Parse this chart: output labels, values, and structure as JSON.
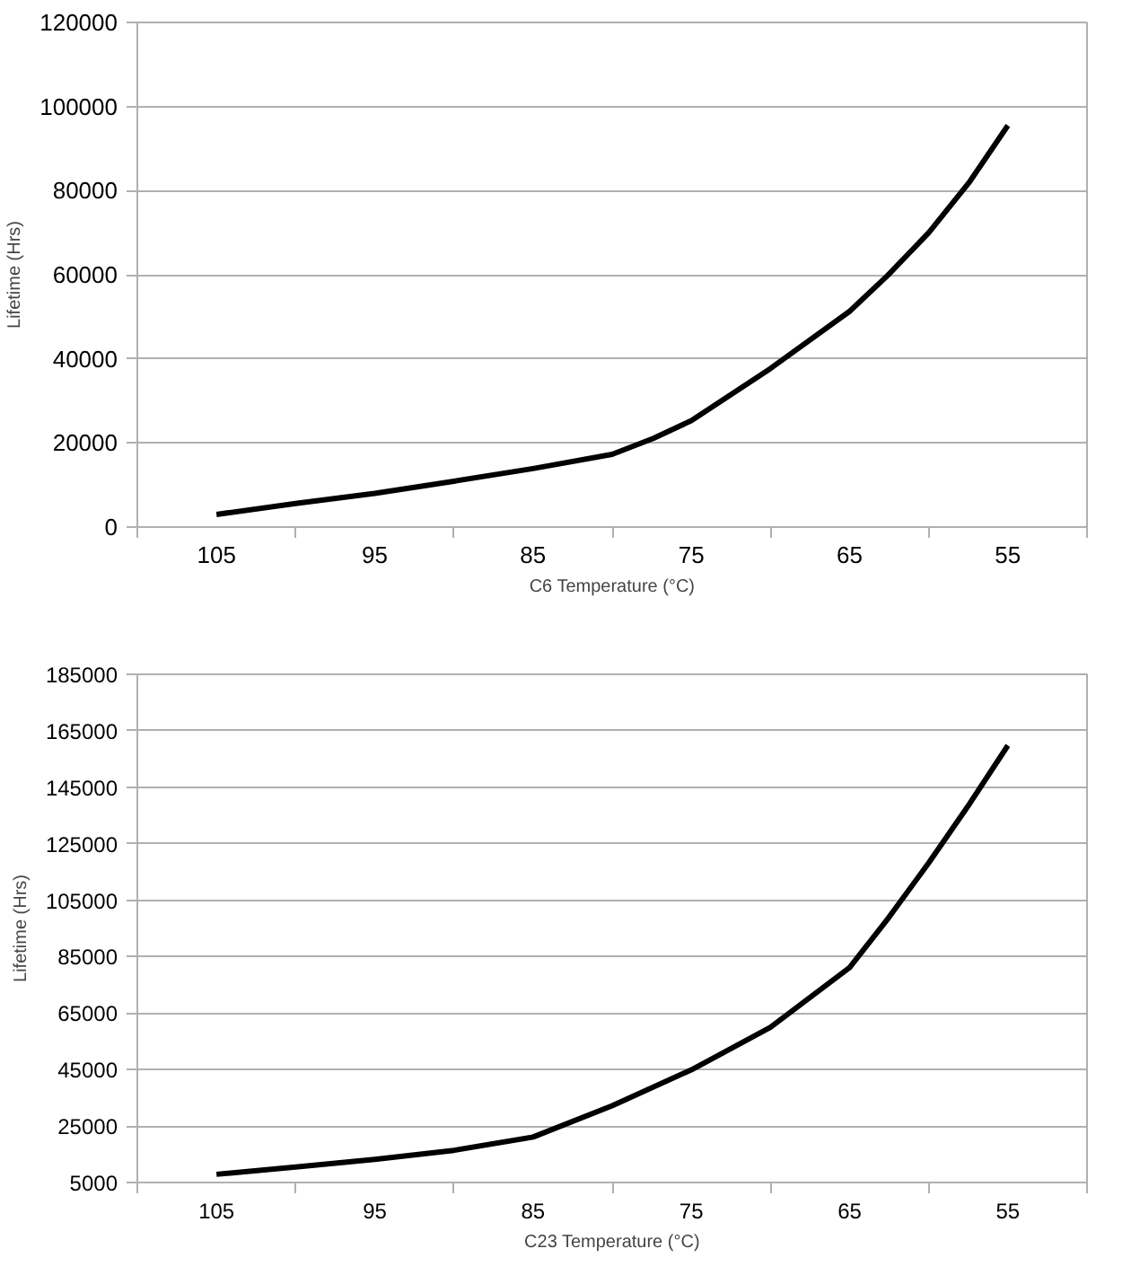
{
  "chart_data": [
    {
      "type": "line",
      "xlabel": "C6 Temperature (°C)",
      "ylabel": "Lifetime (Hrs)",
      "xlim": [
        110,
        50
      ],
      "xticks": [
        105,
        95,
        85,
        75,
        65,
        55
      ],
      "ylim": [
        0,
        120000
      ],
      "yticks": [
        0,
        20000,
        40000,
        60000,
        80000,
        100000,
        120000
      ],
      "grid": "y",
      "line_style": "solid",
      "marker": "none",
      "series": [
        {
          "color": "#000000",
          "x": [
            105,
            100,
            95,
            90,
            85,
            80,
            77.4,
            75,
            70,
            65,
            62.6,
            60,
            57.4,
            55
          ],
          "values": [
            3000,
            5600,
            8000,
            10900,
            13900,
            17300,
            21100,
            25300,
            37700,
            51300,
            59800,
            70000,
            82200,
            95500
          ]
        }
      ]
    },
    {
      "type": "line",
      "xlabel": "C23 Temperature (°C)",
      "ylabel": "Lifetime (Hrs)",
      "xlim": [
        110,
        50
      ],
      "xticks": [
        105,
        95,
        85,
        75,
        65,
        55
      ],
      "ylim": [
        5000,
        185000
      ],
      "yticks": [
        5000,
        25000,
        45000,
        65000,
        85000,
        105000,
        125000,
        145000,
        165000,
        185000
      ],
      "grid": "y",
      "line_style": "solid",
      "marker": "none",
      "series": [
        {
          "color": "#000000",
          "x": [
            105,
            100,
            95,
            90,
            85,
            80,
            75,
            70,
            65,
            62.6,
            60,
            57.4,
            55
          ],
          "values": [
            7900,
            10500,
            13200,
            16400,
            21100,
            32200,
            44900,
            60000,
            81100,
            98300,
            118200,
            139300,
            159800
          ]
        }
      ]
    }
  ]
}
